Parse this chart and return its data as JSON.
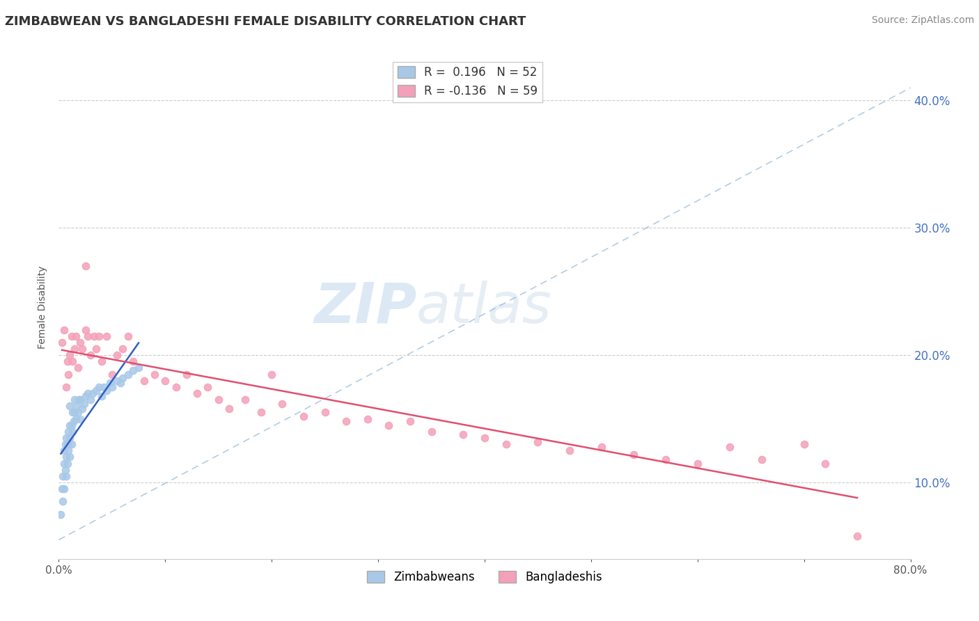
{
  "title": "ZIMBABWEAN VS BANGLADESHI FEMALE DISABILITY CORRELATION CHART",
  "source": "Source: ZipAtlas.com",
  "ylabel": "Female Disability",
  "xlim": [
    0.0,
    0.8
  ],
  "ylim": [
    0.04,
    0.435
  ],
  "x_tick_positions": [
    0.0,
    0.1,
    0.2,
    0.3,
    0.4,
    0.5,
    0.6,
    0.7,
    0.8
  ],
  "x_tick_labels": [
    "0.0%",
    "",
    "",
    "",
    "",
    "",
    "",
    "",
    "80.0%"
  ],
  "y_ticks": [
    0.1,
    0.2,
    0.3,
    0.4
  ],
  "y_tick_labels": [
    "10.0%",
    "20.0%",
    "30.0%",
    "40.0%"
  ],
  "legend_labels": [
    "Zimbabweans",
    "Bangladeshis"
  ],
  "R_zimbabwe": 0.196,
  "N_zimbabwe": 52,
  "R_bangladesh": -0.136,
  "N_bangladesh": 59,
  "zimbabwe_color": "#a8c8e8",
  "bangladesh_color": "#f4a0b8",
  "zimbabwe_line_color": "#3060c0",
  "bangladesh_line_color": "#e05070",
  "diag_line_color": "#90b8d8",
  "watermark_zip": "ZIP",
  "watermark_atlas": "atlas",
  "zimbabwe_x": [
    0.002,
    0.003,
    0.004,
    0.004,
    0.005,
    0.005,
    0.005,
    0.006,
    0.006,
    0.007,
    0.007,
    0.007,
    0.008,
    0.008,
    0.009,
    0.009,
    0.01,
    0.01,
    0.01,
    0.01,
    0.012,
    0.012,
    0.013,
    0.013,
    0.014,
    0.015,
    0.015,
    0.016,
    0.017,
    0.018,
    0.019,
    0.02,
    0.02,
    0.022,
    0.024,
    0.025,
    0.027,
    0.03,
    0.032,
    0.035,
    0.038,
    0.04,
    0.042,
    0.045,
    0.048,
    0.05,
    0.055,
    0.058,
    0.06,
    0.065,
    0.07,
    0.075
  ],
  "zimbabwe_y": [
    0.075,
    0.095,
    0.085,
    0.105,
    0.115,
    0.095,
    0.125,
    0.11,
    0.13,
    0.105,
    0.12,
    0.135,
    0.115,
    0.13,
    0.125,
    0.14,
    0.12,
    0.135,
    0.145,
    0.16,
    0.13,
    0.145,
    0.14,
    0.155,
    0.148,
    0.155,
    0.165,
    0.15,
    0.16,
    0.155,
    0.165,
    0.15,
    0.165,
    0.158,
    0.162,
    0.168,
    0.17,
    0.165,
    0.17,
    0.172,
    0.175,
    0.168,
    0.175,
    0.172,
    0.178,
    0.175,
    0.18,
    0.178,
    0.182,
    0.185,
    0.188,
    0.19
  ],
  "bangladesh_x": [
    0.003,
    0.005,
    0.007,
    0.008,
    0.009,
    0.01,
    0.012,
    0.013,
    0.015,
    0.016,
    0.018,
    0.02,
    0.022,
    0.025,
    0.027,
    0.03,
    0.033,
    0.035,
    0.038,
    0.04,
    0.045,
    0.05,
    0.055,
    0.06,
    0.065,
    0.07,
    0.08,
    0.09,
    0.1,
    0.11,
    0.12,
    0.13,
    0.14,
    0.15,
    0.16,
    0.175,
    0.19,
    0.21,
    0.23,
    0.25,
    0.27,
    0.29,
    0.31,
    0.33,
    0.35,
    0.38,
    0.4,
    0.42,
    0.45,
    0.48,
    0.51,
    0.54,
    0.57,
    0.6,
    0.63,
    0.66,
    0.7,
    0.72,
    0.75
  ],
  "bangladesh_y": [
    0.21,
    0.22,
    0.175,
    0.195,
    0.185,
    0.2,
    0.215,
    0.195,
    0.205,
    0.215,
    0.19,
    0.21,
    0.205,
    0.22,
    0.215,
    0.2,
    0.215,
    0.205,
    0.215,
    0.195,
    0.215,
    0.185,
    0.2,
    0.205,
    0.215,
    0.195,
    0.18,
    0.185,
    0.18,
    0.175,
    0.185,
    0.17,
    0.175,
    0.165,
    0.158,
    0.165,
    0.155,
    0.162,
    0.152,
    0.155,
    0.148,
    0.15,
    0.145,
    0.148,
    0.14,
    0.138,
    0.135,
    0.13,
    0.132,
    0.125,
    0.128,
    0.122,
    0.118,
    0.115,
    0.128,
    0.118,
    0.13,
    0.115,
    0.058
  ],
  "bangladesh_outlier_x": [
    0.025
  ],
  "bangladesh_outlier_y": [
    0.27
  ],
  "bangladesh_mid_outlier_x": [
    0.2
  ],
  "bangladesh_mid_outlier_y": [
    0.185
  ]
}
